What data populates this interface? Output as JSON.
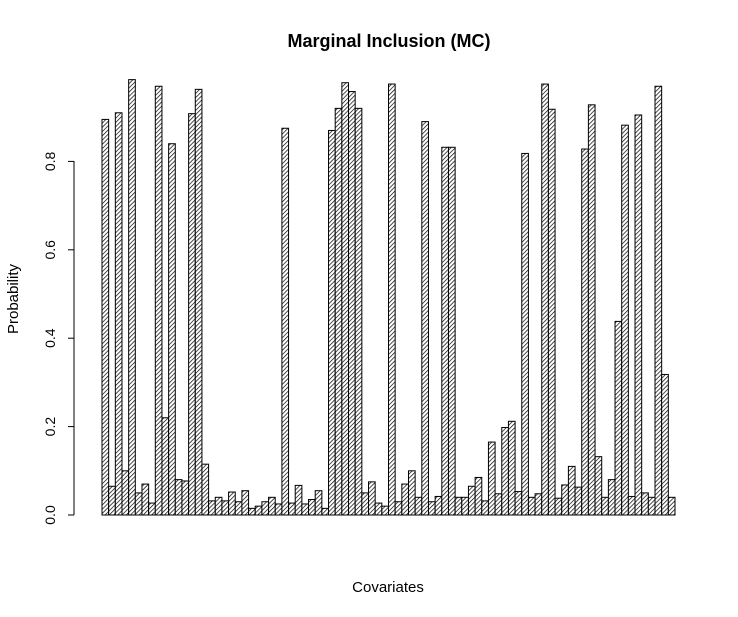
{
  "chart_data": {
    "type": "bar",
    "title": "Marginal Inclusion (MC)",
    "xlabel": "Covariates",
    "ylabel": "Probability",
    "ylim": [
      0,
      1.0
    ],
    "yticks": [
      0.0,
      0.2,
      0.4,
      0.6,
      0.8
    ],
    "ytick_labels": [
      "0.0",
      "0.2",
      "0.4",
      "0.6",
      "0.8"
    ],
    "bar_fill": "hatched",
    "values": [
      0.895,
      0.065,
      0.91,
      0.1,
      0.985,
      0.05,
      0.07,
      0.027,
      0.97,
      0.22,
      0.84,
      0.08,
      0.077,
      0.908,
      0.963,
      0.115,
      0.032,
      0.04,
      0.032,
      0.052,
      0.03,
      0.055,
      0.015,
      0.02,
      0.03,
      0.04,
      0.025,
      0.875,
      0.027,
      0.067,
      0.025,
      0.035,
      0.055,
      0.015,
      0.87,
      0.92,
      0.978,
      0.958,
      0.92,
      0.05,
      0.075,
      0.027,
      0.02,
      0.975,
      0.03,
      0.07,
      0.1,
      0.04,
      0.89,
      0.03,
      0.042,
      0.832,
      0.832,
      0.04,
      0.04,
      0.065,
      0.085,
      0.032,
      0.165,
      0.048,
      0.198,
      0.212,
      0.053,
      0.818,
      0.04,
      0.048,
      0.975,
      0.918,
      0.038,
      0.068,
      0.11,
      0.063,
      0.828,
      0.928,
      0.132,
      0.04,
      0.08,
      0.438,
      0.882,
      0.042,
      0.905,
      0.05,
      0.04,
      0.97,
      0.318,
      0.04
    ]
  }
}
